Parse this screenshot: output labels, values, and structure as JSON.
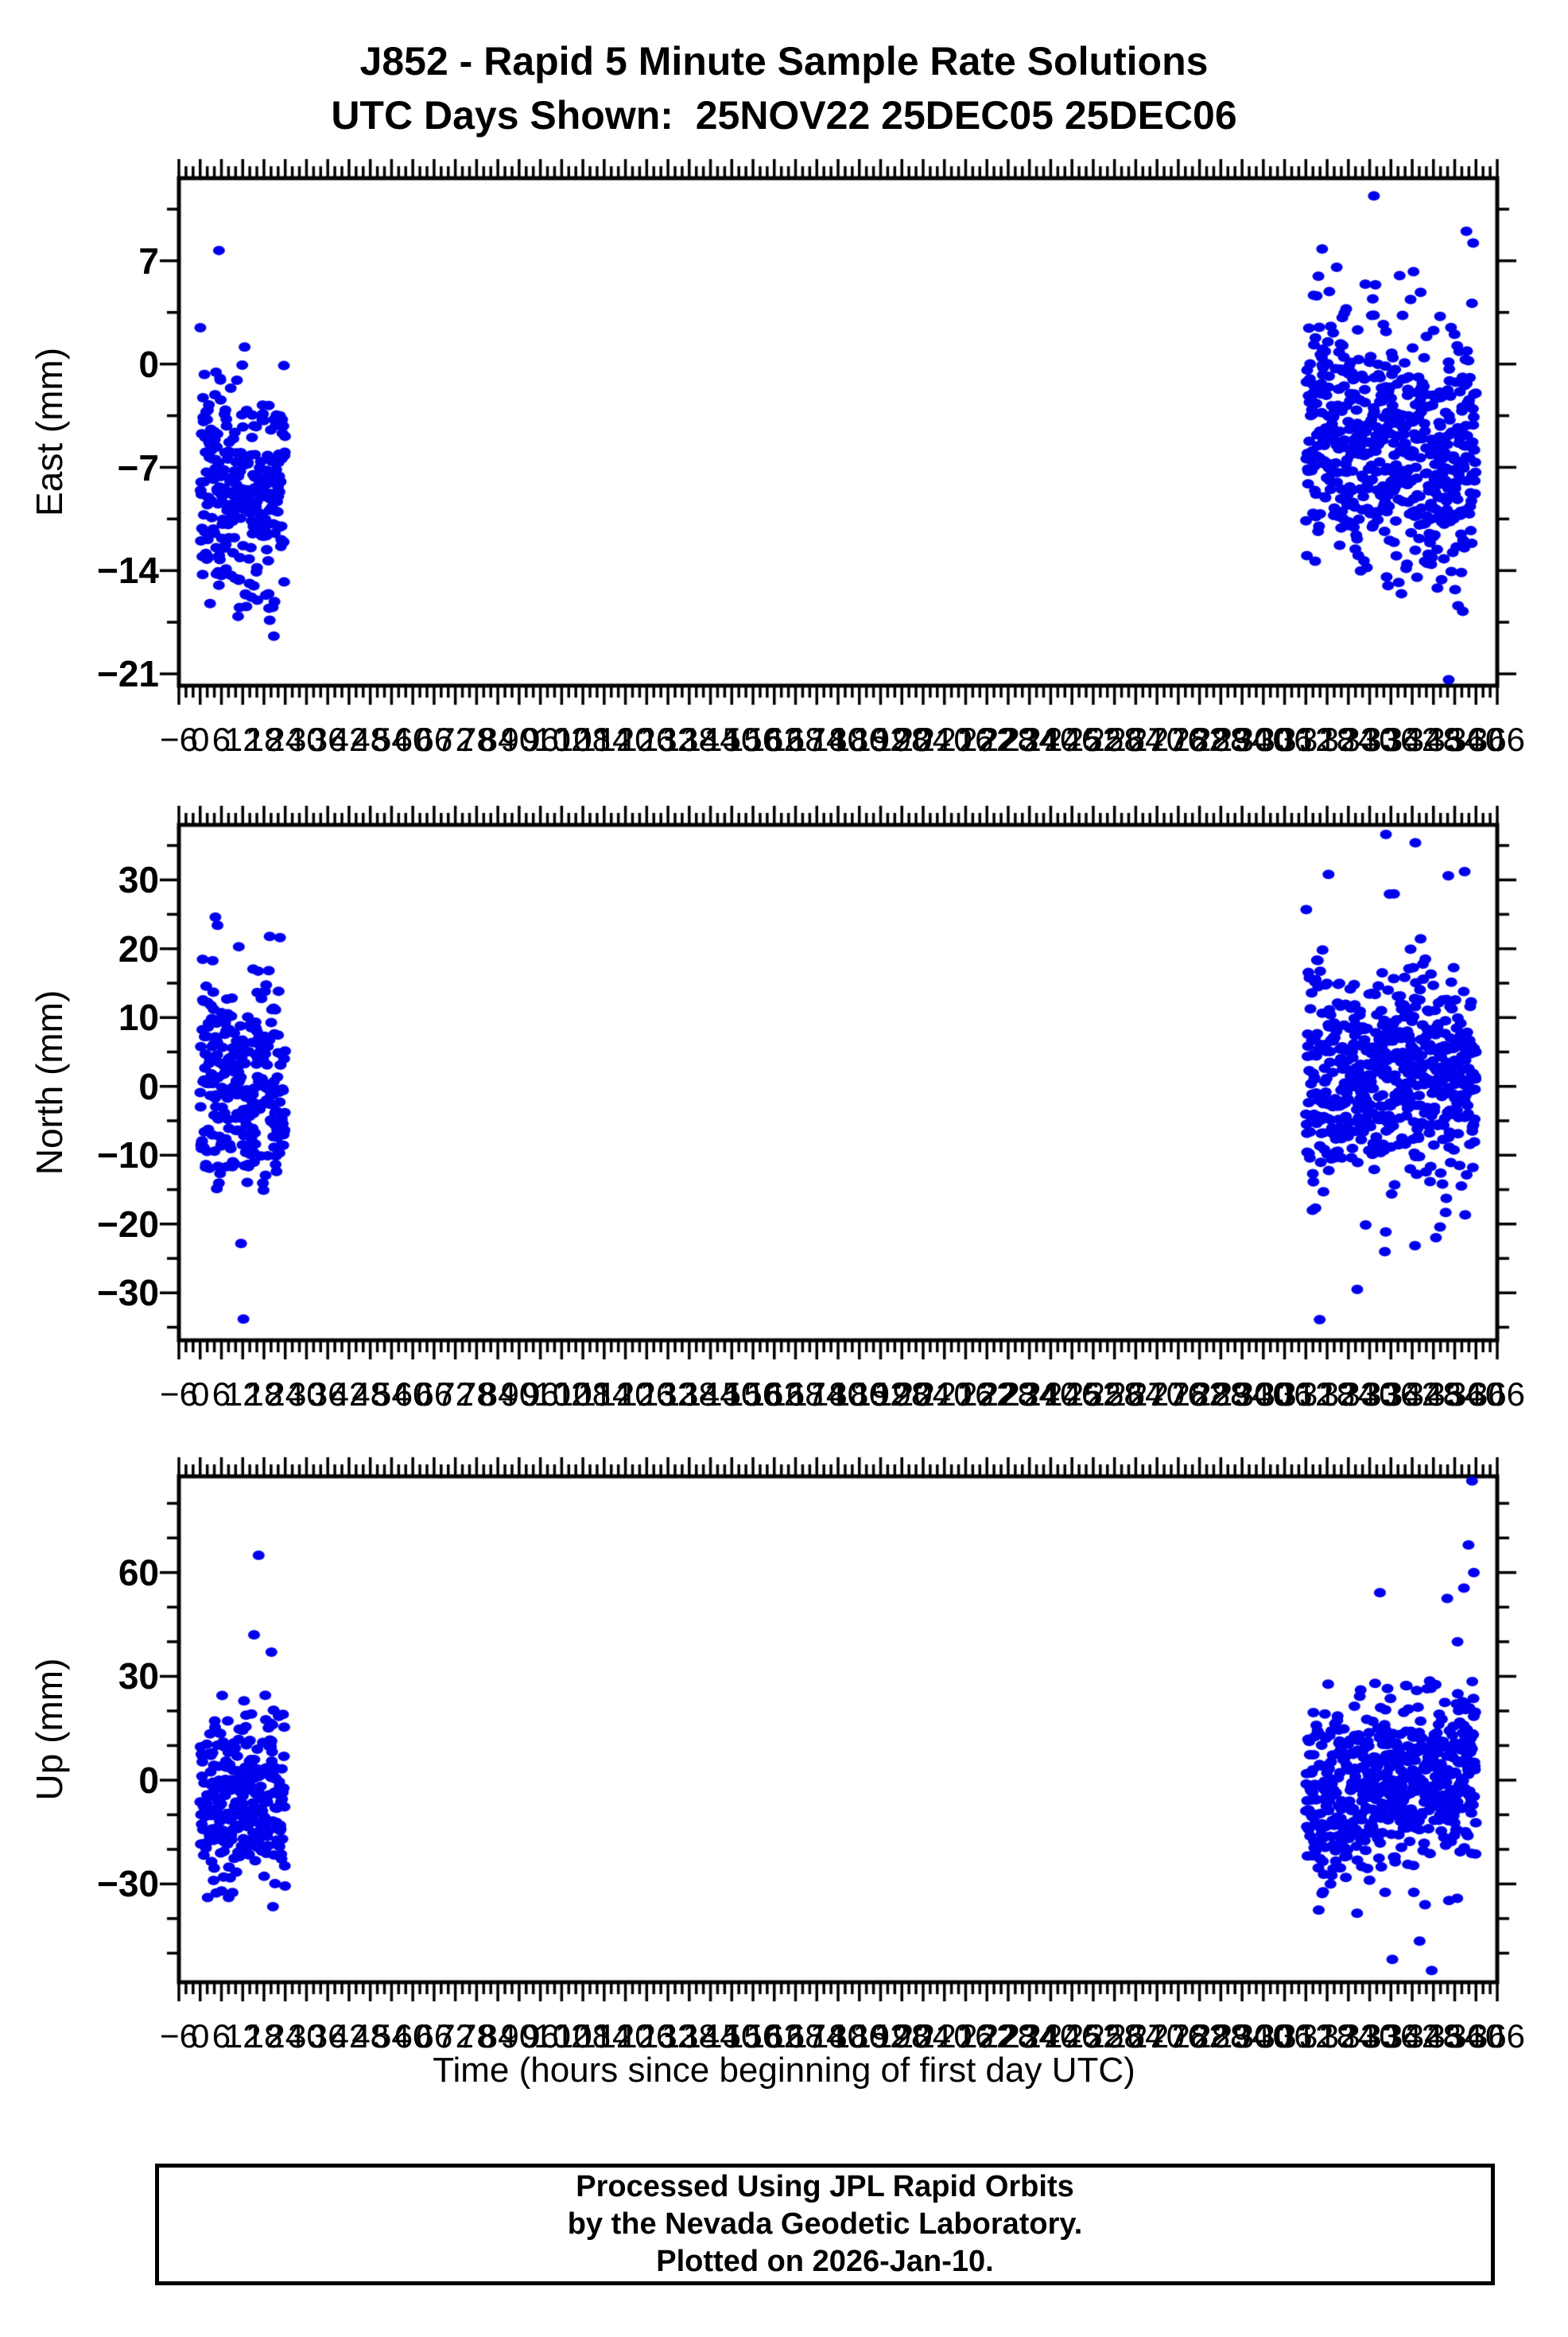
{
  "header": {
    "title": "J852 - Rapid 5 Minute Sample Rate Solutions",
    "subtitle": "UTC Days Shown:  25NOV22 25DEC05 25DEC06"
  },
  "footer": {
    "lines": [
      "Processed Using JPL Rapid Orbits",
      "by the Nevada Geodetic Laboratory.",
      "Plotted on 2026-Jan-10."
    ]
  },
  "chart_data": {
    "type": "scatter",
    "station": "J852",
    "sample_rate": "5 Minute",
    "days_shown": [
      "25NOV22",
      "25DEC05",
      "25DEC06"
    ],
    "xlabel": "Time (hours since beginning of first day UTC)",
    "marker_color": "#0000EE",
    "axis_color": "#000000",
    "render_seed": 7,
    "x_axis": {
      "lim": [
        -6,
        366
      ],
      "major_step": 6,
      "minor_step": 2,
      "tick_labels": [
        "−6",
        "0",
        "6",
        "12",
        "18",
        "24",
        "30",
        "36",
        "42",
        "48",
        "54",
        "60",
        "66",
        "72",
        "78",
        "84",
        "90",
        "96",
        "102",
        "108",
        "114",
        "120",
        "126",
        "132",
        "138",
        "144",
        "150",
        "156",
        "162",
        "168",
        "174",
        "180",
        "186",
        "192",
        "198",
        "204",
        "210",
        "216",
        "222",
        "228",
        "234",
        "240",
        "246",
        "252",
        "258",
        "264",
        "270",
        "276",
        "282",
        "288",
        "294",
        "300",
        "306",
        "312",
        "318",
        "324",
        "330",
        "336",
        "342",
        "348",
        "354",
        "360",
        "366"
      ]
    },
    "panels": [
      {
        "id": "east",
        "ylabel": "East (mm)",
        "ylim": [
          -21.8,
          12.6
        ],
        "yticks": [
          {
            "v": 7,
            "label": "7"
          },
          {
            "v": 0,
            "label": "0"
          },
          {
            "v": -7,
            "label": "−7"
          },
          {
            "v": -14,
            "label": "−14"
          },
          {
            "v": -21,
            "label": "−21"
          }
        ],
        "y_major_step": 7,
        "y_minor_step": 3.5,
        "clusters": [
          {
            "x0": 0,
            "x1": 24,
            "n": 288,
            "mean": -8.3,
            "slope": 0,
            "std": 3.9,
            "min": -19.8,
            "max": 3.2
          },
          {
            "x0": 312,
            "x1": 360,
            "n": 576,
            "mean": -3.9,
            "slope": -0.072,
            "std": 4.3,
            "min": -18.0,
            "max": 8.6
          }
        ],
        "outliers": [
          [
            5.3,
            7.7
          ],
          [
            316.6,
            7.8
          ],
          [
            331.2,
            11.4
          ],
          [
            352.3,
            -21.4
          ],
          [
            357.3,
            9.0
          ],
          [
            359.2,
            8.2
          ]
        ]
      },
      {
        "id": "north",
        "ylabel": "North (mm)",
        "ylim": [
          -36.9,
          38.0
        ],
        "yticks": [
          {
            "v": 30,
            "label": "30"
          },
          {
            "v": 20,
            "label": "20"
          },
          {
            "v": 10,
            "label": "10"
          },
          {
            "v": 0,
            "label": "0"
          },
          {
            "v": -10,
            "label": "−10"
          },
          {
            "v": -20,
            "label": "−20"
          },
          {
            "v": -30,
            "label": "−30"
          }
        ],
        "y_major_step": 10,
        "y_minor_step": 5,
        "clusters": [
          {
            "x0": 0,
            "x1": 24,
            "n": 288,
            "mean": 0.6,
            "slope": 0,
            "std": 7.4,
            "min": -24.5,
            "max": 22.5
          },
          {
            "x0": 312,
            "x1": 360,
            "n": 576,
            "mean": 1.6,
            "slope": 0,
            "std": 7.8,
            "min": -26.0,
            "max": 28.0
          }
        ],
        "outliers": [
          [
            4.3,
            24.6
          ],
          [
            4.9,
            23.4
          ],
          [
            10.9,
            20.3
          ],
          [
            12.2,
            -33.8
          ],
          [
            315.9,
            -33.9
          ],
          [
            318.4,
            30.8
          ],
          [
            326.5,
            -29.5
          ],
          [
            334.6,
            36.6
          ],
          [
            342.9,
            35.4
          ],
          [
            352.2,
            30.6
          ],
          [
            356.8,
            31.2
          ]
        ]
      },
      {
        "id": "up",
        "ylabel": "Up (mm)",
        "ylim": [
          -58.4,
          87.8
        ],
        "yticks": [
          {
            "v": 60,
            "label": "60"
          },
          {
            "v": 30,
            "label": "30"
          },
          {
            "v": 0,
            "label": "0"
          },
          {
            "v": -30,
            "label": "−30"
          }
        ],
        "y_major_step": 30,
        "y_minor_step": 10,
        "clusters": [
          {
            "x0": 0,
            "x1": 24,
            "n": 288,
            "mean": -5.5,
            "slope": 0,
            "std": 12.5,
            "min": -39.0,
            "max": 26.0
          },
          {
            "x0": 312,
            "x1": 360,
            "n": 576,
            "mean": -7.0,
            "slope": 0.23,
            "std": 12.5,
            "min": -45.0,
            "max": 29.0
          }
        ],
        "outliers": [
          [
            15.2,
            42
          ],
          [
            16.5,
            65
          ],
          [
            20.1,
            37
          ],
          [
            332.9,
            54.2
          ],
          [
            336.4,
            -51.8
          ],
          [
            344.1,
            -46.5
          ],
          [
            347.5,
            -55
          ],
          [
            351.9,
            52.5
          ],
          [
            354.8,
            40
          ],
          [
            356.6,
            55.5
          ],
          [
            357.9,
            68
          ],
          [
            358.9,
            86.5
          ],
          [
            359.4,
            60
          ]
        ]
      }
    ]
  }
}
